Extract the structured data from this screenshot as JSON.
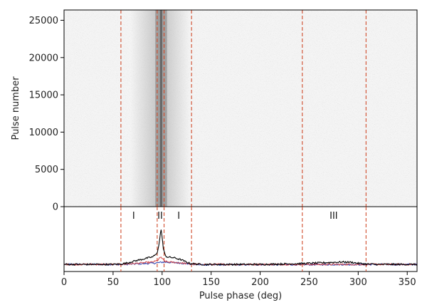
{
  "chart_data": [
    {
      "type": "heatmap",
      "xlabel": "",
      "ylabel": "Pulse number",
      "xlim": [
        0,
        360
      ],
      "ylim": [
        0,
        26000
      ],
      "yticks": [
        0,
        5000,
        10000,
        15000,
        20000,
        25000
      ],
      "grid": false,
      "colormap": "greys",
      "emission_band_deg": [
        93,
        105
      ],
      "diffuse_band_deg": [
        68,
        128
      ],
      "component_boundaries_deg": [
        58,
        95,
        102,
        130,
        243,
        308
      ],
      "boundary_color": "#d04a2a"
    },
    {
      "type": "line",
      "xlabel": "Pulse phase (deg)",
      "ylabel": "",
      "xlim": [
        0,
        360
      ],
      "xticks": [
        0,
        50,
        100,
        150,
        200,
        250,
        300,
        350
      ],
      "grid": false,
      "component_boundaries_deg": [
        58,
        95,
        102,
        130,
        243,
        308
      ],
      "region_labels": [
        {
          "text": "I",
          "x": 71
        },
        {
          "text": "II",
          "x": 98
        },
        {
          "text": "I",
          "x": 117
        },
        {
          "text": "III",
          "x": 275
        }
      ],
      "series": [
        {
          "color": "#000000",
          "x": [
            0,
            50,
            58,
            65,
            70,
            75,
            80,
            85,
            90,
            93,
            95,
            97,
            98,
            99,
            100,
            101,
            103,
            105,
            108,
            112,
            116,
            120,
            124,
            128,
            130,
            135,
            140,
            150,
            200,
            240,
            250,
            260,
            270,
            280,
            285,
            290,
            295,
            300,
            308,
            320,
            360
          ],
          "y": [
            0,
            0,
            0.01,
            0.04,
            0.08,
            0.11,
            0.14,
            0.17,
            0.2,
            0.25,
            0.32,
            0.55,
            0.8,
            0.92,
            0.78,
            0.45,
            0.25,
            0.2,
            0.19,
            0.18,
            0.15,
            0.12,
            0.07,
            0.03,
            0.02,
            0.01,
            0,
            0,
            0,
            0.02,
            0.03,
            0.04,
            0.05,
            0.06,
            0.065,
            0.06,
            0.05,
            0.03,
            0.01,
            0,
            0
          ]
        },
        {
          "color": "#d0474b",
          "x": [
            0,
            58,
            70,
            80,
            90,
            95,
            98,
            99,
            100,
            103,
            108,
            115,
            122,
            130,
            140,
            360
          ],
          "y": [
            0,
            0,
            0.02,
            0.04,
            0.06,
            0.1,
            0.18,
            0.2,
            0.15,
            0.08,
            0.06,
            0.05,
            0.03,
            0.01,
            0,
            0
          ]
        },
        {
          "color": "#2a3fb0",
          "x": [
            0,
            58,
            70,
            80,
            90,
            95,
            98,
            100,
            104,
            110,
            118,
            125,
            132,
            140,
            360
          ],
          "y": [
            0,
            0,
            0.01,
            0.02,
            0.03,
            0.04,
            0.05,
            0.06,
            0.06,
            0.05,
            0.04,
            0.02,
            0.0,
            -0.01,
            0
          ]
        }
      ]
    }
  ]
}
